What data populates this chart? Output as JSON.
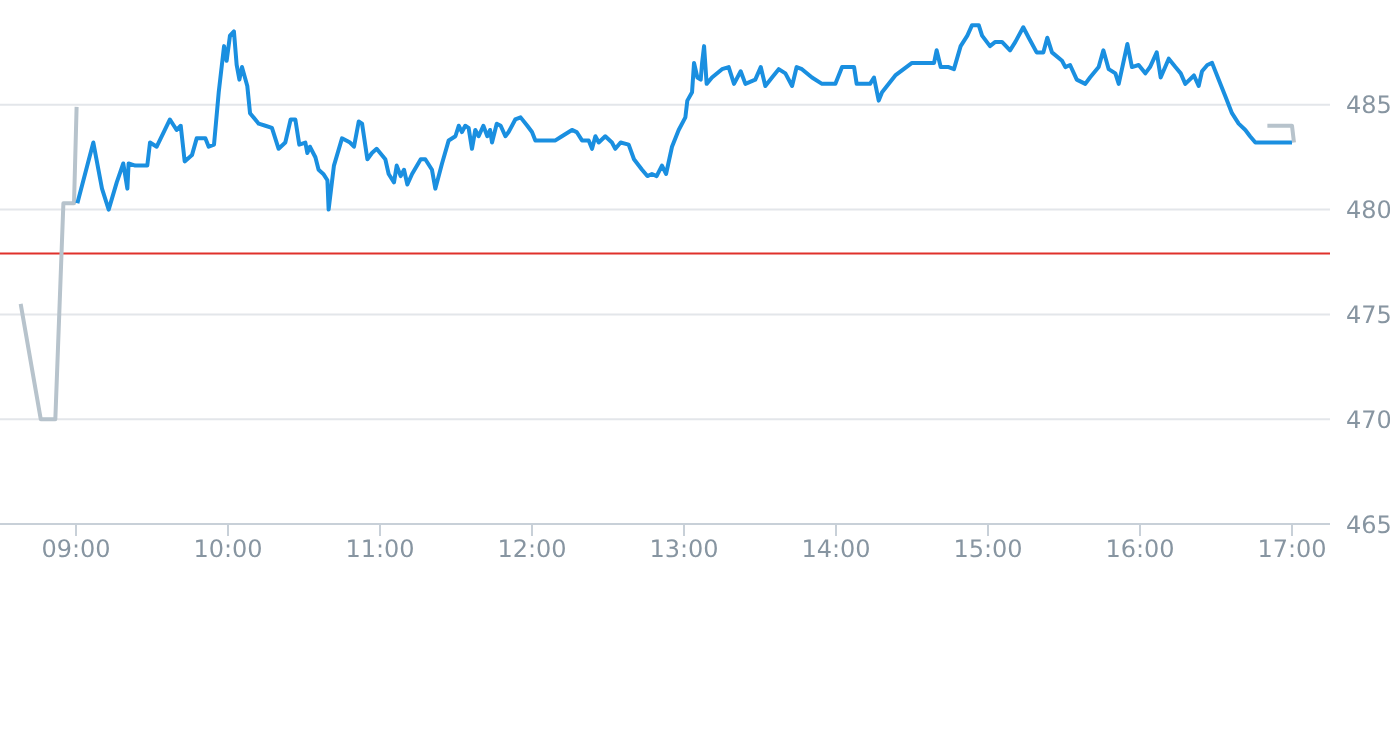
{
  "chart_data": {
    "type": "line",
    "xlim": [
      8.5,
      17.25
    ],
    "xticks": [
      {
        "value": 9,
        "label": "09:00"
      },
      {
        "value": 10,
        "label": "10:00"
      },
      {
        "value": 11,
        "label": "11:00"
      },
      {
        "value": 12,
        "label": "12:00"
      },
      {
        "value": 13,
        "label": "13:00"
      },
      {
        "value": 14,
        "label": "14:00"
      },
      {
        "value": 15,
        "label": "15:00"
      },
      {
        "value": 16,
        "label": "16:00"
      },
      {
        "value": 17,
        "label": "17:00"
      }
    ],
    "ylim": [
      465,
      490
    ],
    "yticks": [
      465,
      470,
      475,
      480,
      485
    ],
    "grid": "y",
    "ref_lines": [
      {
        "axis": "y",
        "value": 477.9,
        "color": "#e0312b"
      }
    ],
    "series": [
      {
        "color": "#b7c3cc",
        "x": [
          8.636,
          8.768,
          8.864,
          8.917,
          8.987,
          9.004
        ],
        "values": [
          475.5,
          470.0,
          470.0,
          480.3,
          480.3,
          484.9
        ]
      },
      {
        "color": "#1a8fe0",
        "x": [
          9.009,
          9.114,
          9.171,
          9.215,
          9.268,
          9.311,
          9.338,
          9.346,
          9.39,
          9.469,
          9.487,
          9.531,
          9.618,
          9.662,
          9.689,
          9.715,
          9.763,
          9.794,
          9.851,
          9.873,
          9.908,
          9.939,
          9.974,
          9.991,
          10.013,
          10.039,
          10.057,
          10.075,
          10.092,
          10.127,
          10.145,
          10.202,
          10.246,
          10.289,
          10.333,
          10.377,
          10.412,
          10.443,
          10.469,
          10.509,
          10.522,
          10.539,
          10.575,
          10.596,
          10.627,
          10.654,
          10.662,
          10.697,
          10.75,
          10.803,
          10.829,
          10.86,
          10.882,
          10.917,
          10.947,
          10.978,
          11.035,
          11.057,
          11.092,
          11.11,
          11.136,
          11.158,
          11.18,
          11.211,
          11.268,
          11.298,
          11.342,
          11.364,
          11.408,
          11.452,
          11.496,
          11.518,
          11.539,
          11.561,
          11.583,
          11.605,
          11.627,
          11.649,
          11.68,
          11.706,
          11.724,
          11.737,
          11.768,
          11.794,
          11.825,
          11.846,
          11.89,
          11.925,
          11.969,
          12.0,
          12.022,
          12.11,
          12.154,
          12.197,
          12.263,
          12.294,
          12.329,
          12.373,
          12.395,
          12.417,
          12.439,
          12.482,
          12.526,
          12.548,
          12.583,
          12.636,
          12.671,
          12.724,
          12.759,
          12.789,
          12.82,
          12.855,
          12.882,
          12.921,
          12.965,
          13.009,
          13.022,
          13.053,
          13.066,
          13.088,
          13.11,
          13.119,
          13.132,
          13.149,
          13.184,
          13.25,
          13.294,
          13.329,
          13.373,
          13.404,
          13.469,
          13.505,
          13.535,
          13.579,
          13.623,
          13.667,
          13.711,
          13.741,
          13.776,
          13.842,
          13.908,
          13.996,
          14.04,
          14.119,
          14.136,
          14.224,
          14.25,
          14.281,
          14.303,
          14.39,
          14.5,
          14.645,
          14.662,
          14.689,
          14.741,
          14.776,
          14.82,
          14.864,
          14.895,
          14.939,
          14.961,
          15.013,
          15.048,
          15.092,
          15.145,
          15.18,
          15.232,
          15.268,
          15.32,
          15.364,
          15.39,
          15.421,
          15.487,
          15.509,
          15.54,
          15.584,
          15.64,
          15.671,
          15.728,
          15.759,
          15.794,
          15.838,
          15.86,
          15.917,
          15.947,
          15.991,
          16.035,
          16.066,
          16.11,
          16.136,
          16.189,
          16.233,
          16.268,
          16.298,
          16.355,
          16.386,
          16.408,
          16.443,
          16.474,
          16.518,
          16.562,
          16.605,
          16.649,
          16.693,
          16.724,
          16.759,
          17.0
        ],
        "values": [
          480.3,
          483.2,
          481.0,
          480.0,
          481.3,
          482.2,
          481.0,
          482.2,
          482.1,
          482.1,
          483.2,
          483.0,
          484.3,
          483.8,
          484.0,
          482.3,
          482.6,
          483.4,
          483.4,
          483.0,
          483.1,
          485.6,
          487.8,
          487.1,
          488.3,
          488.5,
          486.9,
          486.2,
          486.8,
          485.9,
          484.6,
          484.1,
          484.0,
          483.9,
          482.9,
          483.2,
          484.3,
          484.3,
          483.1,
          483.2,
          482.7,
          483.0,
          482.5,
          481.9,
          481.7,
          481.4,
          480.0,
          482.1,
          483.4,
          483.2,
          483.0,
          484.2,
          484.1,
          482.4,
          482.7,
          482.9,
          482.4,
          481.7,
          481.3,
          482.1,
          481.6,
          481.9,
          481.2,
          481.7,
          482.4,
          482.4,
          481.9,
          481.0,
          482.2,
          483.3,
          483.5,
          484.0,
          483.7,
          484.0,
          483.9,
          482.9,
          483.8,
          483.5,
          484.0,
          483.5,
          483.8,
          483.2,
          484.1,
          484.0,
          483.5,
          483.7,
          484.3,
          484.4,
          484.0,
          483.7,
          483.3,
          483.3,
          483.3,
          483.5,
          483.8,
          483.7,
          483.3,
          483.3,
          482.9,
          483.5,
          483.2,
          483.5,
          483.2,
          482.9,
          483.2,
          483.1,
          482.4,
          481.9,
          481.6,
          481.7,
          481.6,
          482.1,
          481.7,
          483.0,
          483.8,
          484.4,
          485.2,
          485.6,
          487.0,
          486.3,
          486.2,
          487.0,
          487.8,
          486.0,
          486.3,
          486.7,
          486.8,
          486.0,
          486.6,
          486.0,
          486.2,
          486.8,
          485.9,
          486.3,
          486.7,
          486.5,
          485.9,
          486.8,
          486.7,
          486.3,
          486.0,
          486.0,
          486.8,
          486.8,
          486.0,
          486.0,
          486.3,
          485.2,
          485.6,
          486.4,
          487.0,
          487.0,
          487.6,
          486.8,
          486.8,
          486.7,
          487.8,
          488.3,
          488.8,
          488.8,
          488.3,
          487.8,
          488.0,
          488.0,
          487.6,
          488.0,
          488.7,
          488.2,
          487.5,
          487.5,
          488.2,
          487.5,
          487.1,
          486.8,
          486.9,
          486.2,
          486.0,
          486.3,
          486.8,
          487.6,
          486.7,
          486.5,
          486.0,
          487.9,
          486.8,
          486.9,
          486.5,
          486.8,
          487.5,
          486.3,
          487.2,
          486.8,
          486.5,
          486.0,
          486.4,
          485.9,
          486.6,
          486.9,
          487.0,
          486.2,
          485.4,
          484.6,
          484.1,
          483.8,
          483.5,
          483.2,
          483.2
        ]
      },
      {
        "color": "#b7c3cc",
        "x": [
          16.838,
          17.0,
          17.013
        ],
        "values": [
          484.0,
          484.0,
          483.2
        ]
      }
    ]
  }
}
